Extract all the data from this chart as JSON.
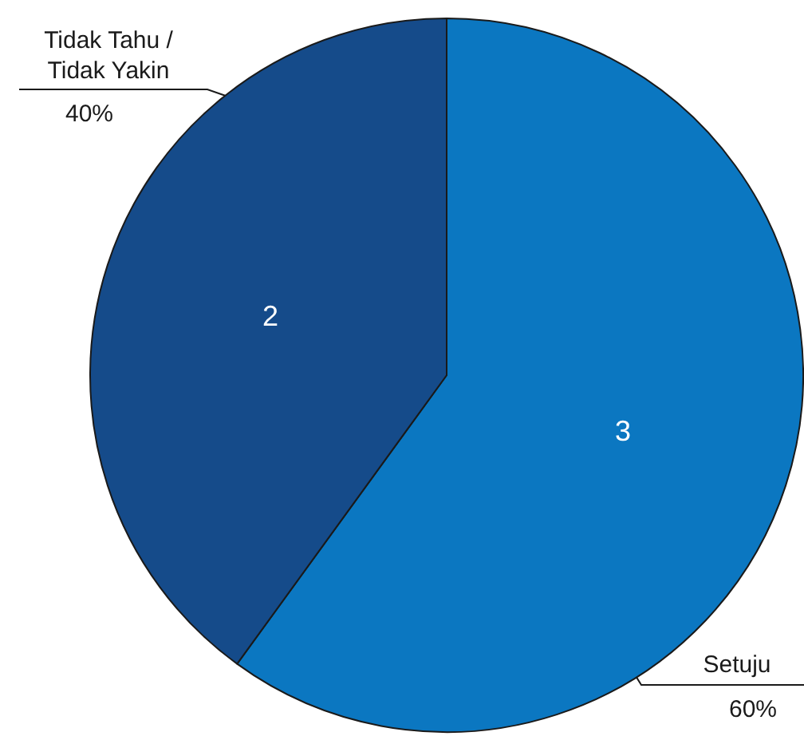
{
  "chart_data": {
    "type": "pie",
    "categories": [
      "Setuju",
      "Tidak Tahu / Tidak Yakin"
    ],
    "values": [
      60,
      40
    ],
    "colors": [
      "#0b77c1",
      "#154b8a"
    ],
    "value_labels": [
      "60%",
      "40%"
    ],
    "annotations": [
      "3",
      "2"
    ],
    "legend": false
  }
}
